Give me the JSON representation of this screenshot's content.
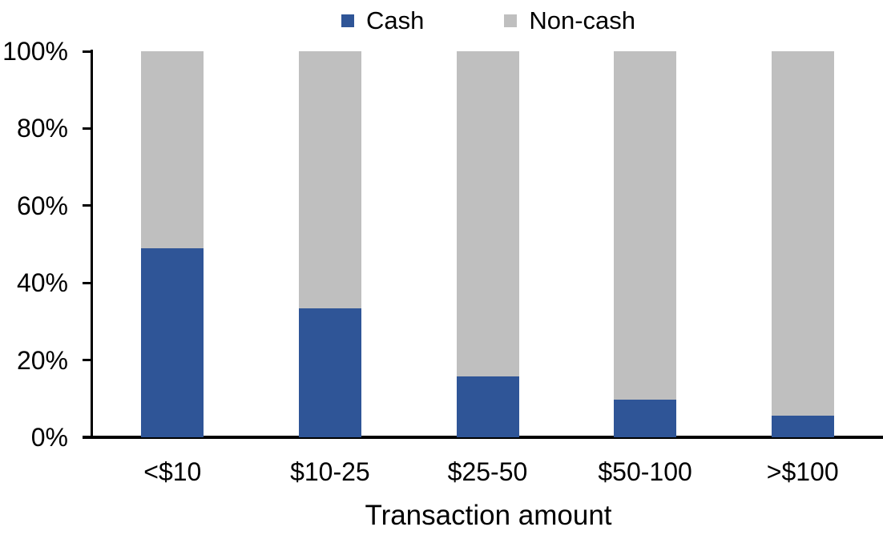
{
  "chart_data": {
    "type": "bar",
    "stacked": true,
    "title": "",
    "xlabel": "Transaction amount",
    "ylabel": "",
    "categories": [
      "<$10",
      "$10-25",
      "$25-50",
      "$50-100",
      ">$100"
    ],
    "series": [
      {
        "name": "Cash",
        "color": "#2F5597",
        "values": [
          49,
          33.5,
          15.8,
          9.7,
          5.6
        ]
      },
      {
        "name": "Non-cash",
        "color": "#BFBFBF",
        "values": [
          51,
          66.5,
          84.2,
          90.3,
          94.4
        ]
      }
    ],
    "ylim": [
      0,
      100
    ],
    "ytick_percents": [
      0,
      20,
      40,
      60,
      80,
      100
    ],
    "ytick_labels": [
      "0%",
      "20%",
      "40%",
      "60%",
      "80%",
      "100%"
    ],
    "legend_position": "top",
    "grid": false,
    "axis_color": "#000000",
    "background_color": "#FFFFFF"
  }
}
